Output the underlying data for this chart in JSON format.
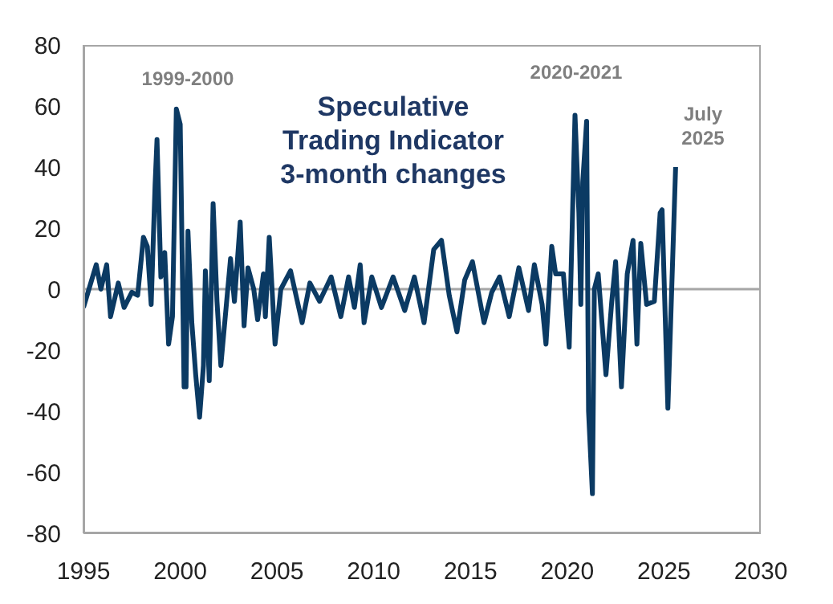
{
  "chart_data": {
    "type": "line",
    "title": "Speculative\nTrading Indicator\n3-month changes",
    "x": [
      1995.0,
      1995.66,
      1995.9,
      1996.2,
      1996.4,
      1996.8,
      1997.1,
      1997.5,
      1997.8,
      1998.1,
      1998.3,
      1998.5,
      1998.7,
      1998.8,
      1999.0,
      1999.2,
      1999.4,
      1999.6,
      1999.8,
      2000.0,
      2000.2,
      2000.3,
      2000.4,
      2000.6,
      2000.8,
      2001.0,
      2001.2,
      2001.3,
      2001.5,
      2001.7,
      2001.9,
      2002.1,
      2002.3,
      2002.6,
      2002.8,
      2003.1,
      2003.3,
      2003.5,
      2003.8,
      2004.0,
      2004.3,
      2004.4,
      2004.6,
      2004.9,
      2005.2,
      2005.7,
      2006.3,
      2006.7,
      2007.2,
      2007.8,
      2008.3,
      2008.7,
      2009.0,
      2009.3,
      2009.5,
      2009.9,
      2010.4,
      2011.0,
      2011.6,
      2012.1,
      2012.6,
      2013.1,
      2013.5,
      2013.9,
      2014.3,
      2014.7,
      2015.1,
      2015.7,
      2016.1,
      2016.5,
      2017.0,
      2017.5,
      2018.0,
      2018.3,
      2018.7,
      2018.9,
      2019.2,
      2019.4,
      2019.8,
      2020.1,
      2020.4,
      2020.6,
      2020.7,
      2020.8,
      2021.0,
      2021.1,
      2021.3,
      2021.4,
      2021.6,
      2022.0,
      2022.3,
      2022.5,
      2022.8,
      2023.1,
      2023.4,
      2023.6,
      2023.8,
      2024.1,
      2024.5,
      2024.8,
      2024.9,
      2025.2,
      2025.6
    ],
    "series": [
      {
        "color": "#0b3a63",
        "values": [
          -6,
          8,
          0,
          8,
          -9,
          2,
          -6,
          -1,
          -2,
          17,
          14,
          -5,
          34,
          49,
          4,
          12,
          -18,
          -9,
          59,
          54,
          -32,
          -32,
          19,
          -11,
          -28,
          -42,
          -25,
          6,
          -30,
          28,
          -4,
          -25,
          -11,
          10,
          -4,
          22,
          -12,
          7,
          0,
          -10,
          5,
          -9,
          17,
          -18,
          0,
          6,
          -11,
          2,
          -4,
          4,
          -9,
          4,
          -6,
          8,
          -11,
          4,
          -6,
          4,
          -7,
          4,
          -11,
          13,
          16,
          -2,
          -14,
          3,
          9,
          -11,
          -1,
          4,
          -9,
          7,
          -7,
          8,
          -5,
          -18,
          14,
          5,
          5,
          -19,
          57,
          25,
          -5,
          35,
          55,
          -40,
          -67,
          0,
          5,
          -28,
          -4,
          9,
          -32,
          5,
          16,
          -18,
          15,
          -5,
          -4,
          25,
          26,
          -39,
          40
        ]
      }
    ],
    "xlim": [
      1995,
      2030
    ],
    "xticks": [
      1995,
      2000,
      2005,
      2010,
      2015,
      2020,
      2025,
      2030
    ],
    "ylim": [
      -80,
      80
    ],
    "yticks": [
      -80,
      -60,
      -40,
      -20,
      0,
      20,
      40,
      60,
      80
    ],
    "ref_lines": [
      {
        "axis": "y",
        "value": 0,
        "color": "#a6a6a6"
      }
    ],
    "annotations": [
      "1999-2000",
      "2020-2021",
      "July\n2025"
    ],
    "grid": false,
    "legend": false,
    "marker": "none",
    "line_style": "solid"
  }
}
